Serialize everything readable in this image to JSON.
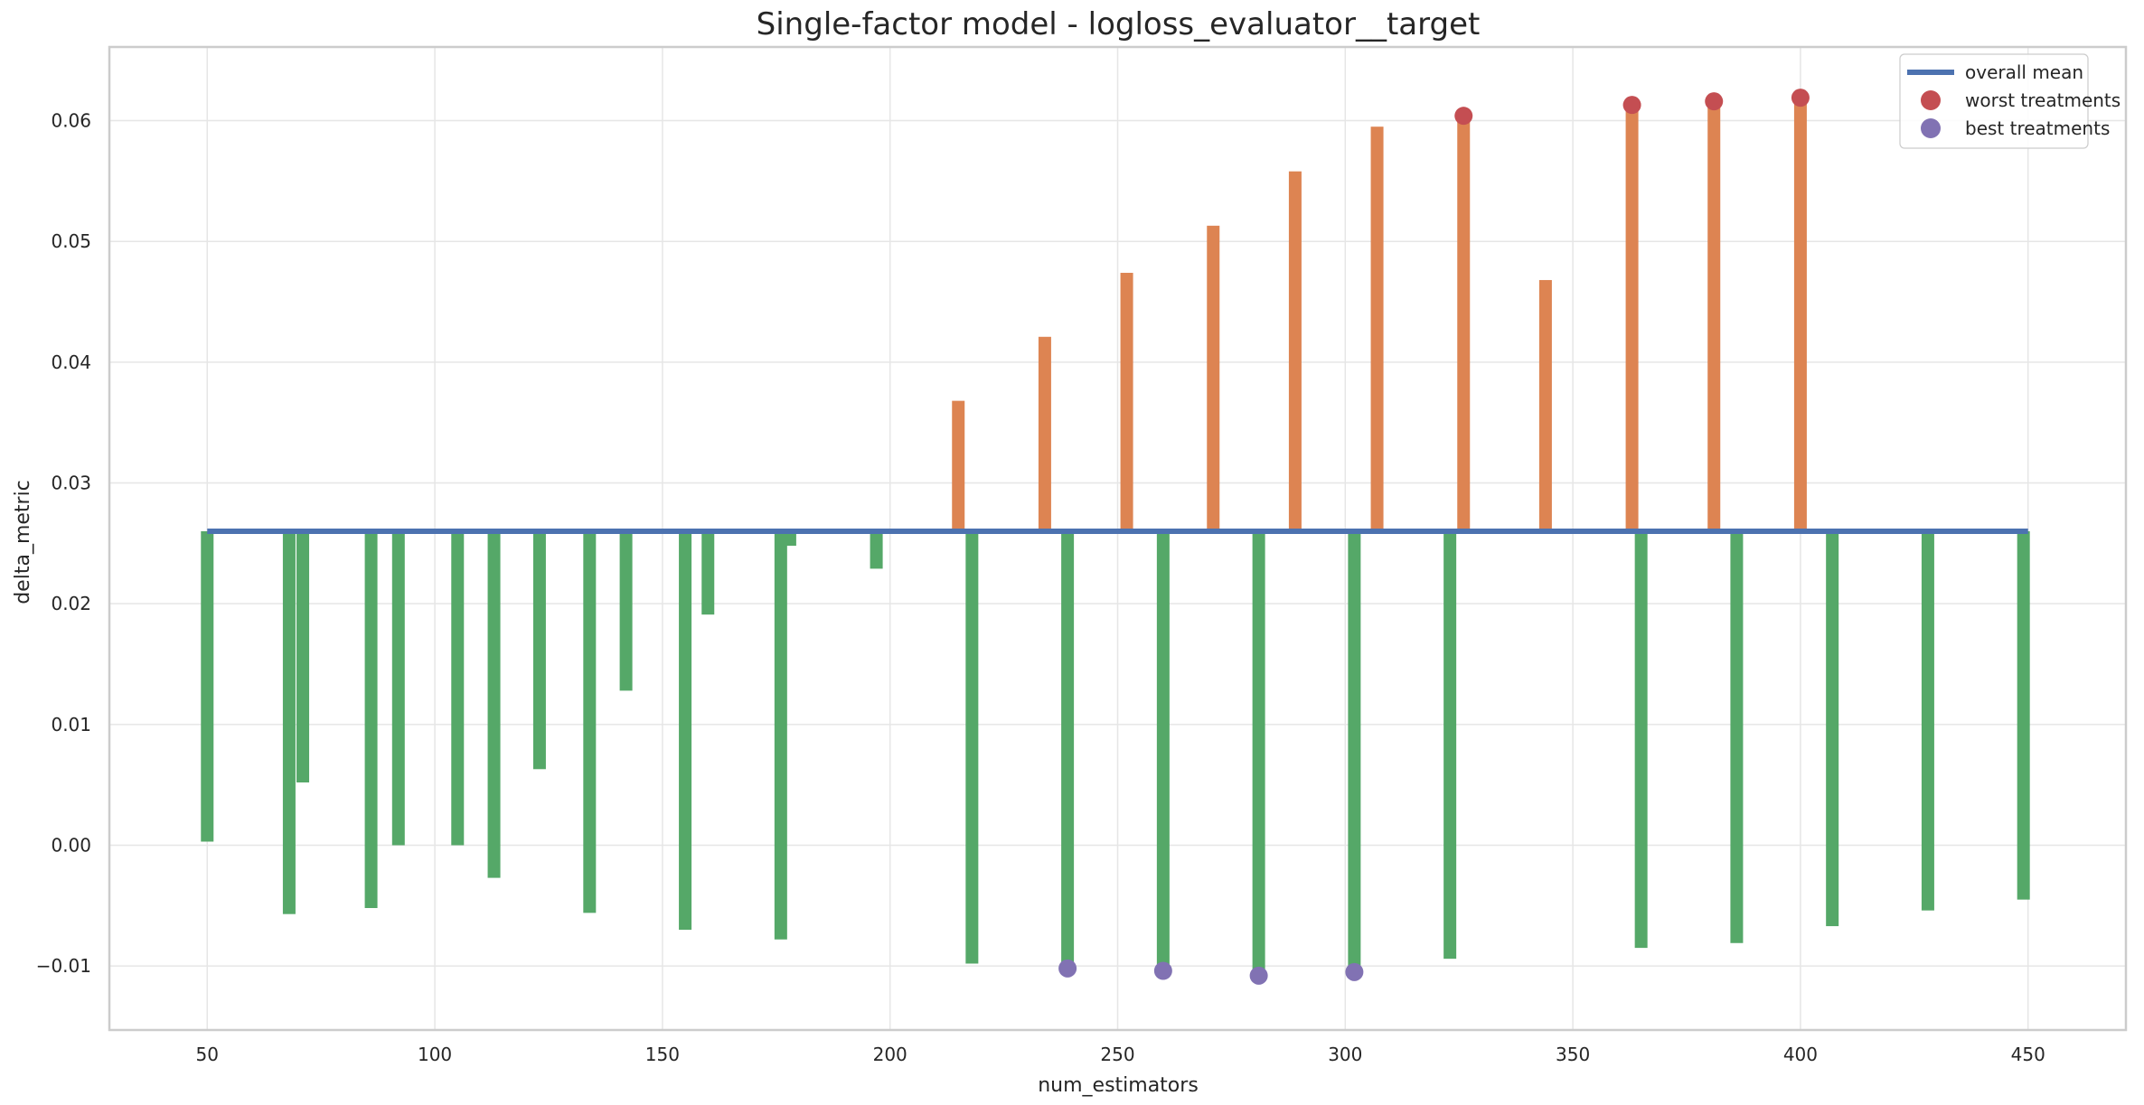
{
  "chart_data": {
    "type": "bar",
    "title": "Single-factor model - logloss_evaluator__target",
    "xlabel": "num_estimators",
    "ylabel": "delta_metric",
    "xlim": [
      28.5,
      471.5
    ],
    "ylim": [
      -0.0153,
      0.0661
    ],
    "xticks": [
      50,
      100,
      150,
      200,
      250,
      300,
      350,
      400,
      450
    ],
    "xtick_labels": [
      "50",
      "100",
      "150",
      "200",
      "250",
      "300",
      "350",
      "400",
      "450"
    ],
    "yticks": [
      -0.01,
      0.0,
      0.01,
      0.02,
      0.03,
      0.04,
      0.05,
      0.06
    ],
    "ytick_labels": [
      "−0.01",
      "0.00",
      "0.01",
      "0.02",
      "0.03",
      "0.04",
      "0.05",
      "0.06"
    ],
    "grid": true,
    "legend_position": "top-right",
    "baseline": 0.026,
    "colors": {
      "below_mean": "#55a868",
      "above_mean": "#dd8452",
      "mean_line": "#4c72b0",
      "worst": "#c44e52",
      "best": "#8172b3",
      "grid": "#e6e6e6",
      "frame": "#cccccc"
    },
    "overall_mean": {
      "name": "overall mean",
      "x": [
        50,
        450
      ],
      "y": [
        0.026,
        0.026
      ]
    },
    "bars": [
      {
        "x": 50,
        "y": 0.0003
      },
      {
        "x": 68,
        "y": -0.0057
      },
      {
        "x": 71,
        "y": 0.0052
      },
      {
        "x": 86,
        "y": -0.0052
      },
      {
        "x": 92,
        "y": 0.0
      },
      {
        "x": 105,
        "y": 0.0
      },
      {
        "x": 113,
        "y": -0.0027
      },
      {
        "x": 123,
        "y": 0.0063
      },
      {
        "x": 134,
        "y": -0.0056
      },
      {
        "x": 142,
        "y": 0.0128
      },
      {
        "x": 155,
        "y": -0.007
      },
      {
        "x": 160,
        "y": 0.0191
      },
      {
        "x": 176,
        "y": -0.0078
      },
      {
        "x": 178,
        "y": 0.0248
      },
      {
        "x": 197,
        "y": 0.0229
      },
      {
        "x": 215,
        "y": 0.0368
      },
      {
        "x": 218,
        "y": -0.0098
      },
      {
        "x": 234,
        "y": 0.0421
      },
      {
        "x": 239,
        "y": -0.0102
      },
      {
        "x": 252,
        "y": 0.0474
      },
      {
        "x": 260,
        "y": -0.0104
      },
      {
        "x": 271,
        "y": 0.0513
      },
      {
        "x": 281,
        "y": -0.0108
      },
      {
        "x": 289,
        "y": 0.0558
      },
      {
        "x": 302,
        "y": -0.0105
      },
      {
        "x": 307,
        "y": 0.0595
      },
      {
        "x": 323,
        "y": -0.0094
      },
      {
        "x": 326,
        "y": 0.0604
      },
      {
        "x": 344,
        "y": 0.0468
      },
      {
        "x": 363,
        "y": 0.0613
      },
      {
        "x": 365,
        "y": -0.0085
      },
      {
        "x": 381,
        "y": 0.0616
      },
      {
        "x": 386,
        "y": -0.0081
      },
      {
        "x": 400,
        "y": 0.0619
      },
      {
        "x": 407,
        "y": -0.0067
      },
      {
        "x": 428,
        "y": -0.0054
      },
      {
        "x": 449,
        "y": -0.0045
      }
    ],
    "series": [
      {
        "name": "worst treatments",
        "type": "scatter",
        "x": [
          326,
          363,
          381,
          400
        ],
        "y": [
          0.0604,
          0.0613,
          0.0616,
          0.0619
        ]
      },
      {
        "name": "best treatments",
        "type": "scatter",
        "x": [
          239,
          260,
          281,
          302
        ],
        "y": [
          -0.0102,
          -0.0104,
          -0.0108,
          -0.0105
        ]
      }
    ],
    "legend": [
      {
        "label": "overall mean",
        "kind": "line"
      },
      {
        "label": "worst treatments",
        "kind": "dot-worst"
      },
      {
        "label": "best treatments",
        "kind": "dot-best"
      }
    ]
  }
}
